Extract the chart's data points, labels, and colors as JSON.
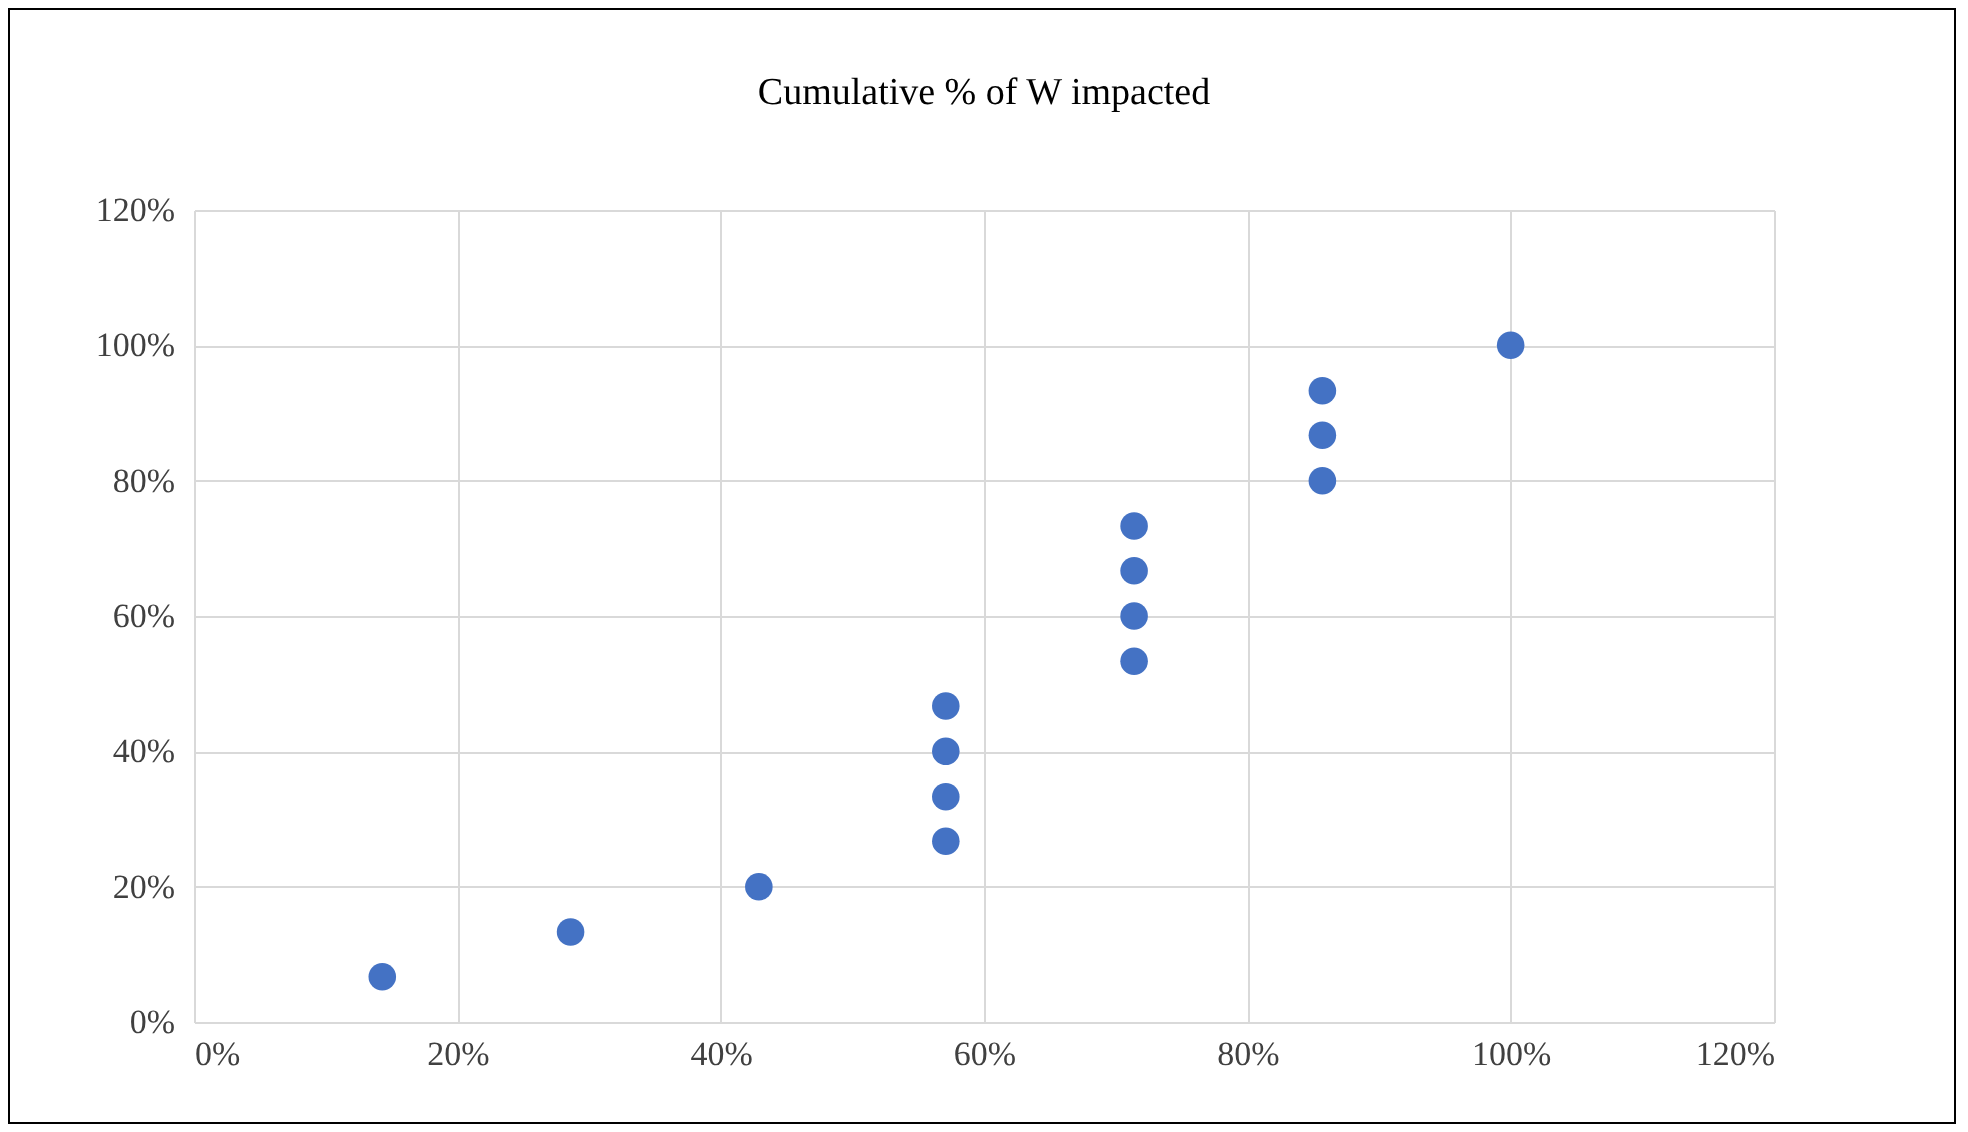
{
  "chart_data": {
    "type": "scatter",
    "title": "Cumulative % of W impacted",
    "x": [
      14.3,
      28.6,
      42.9,
      57.1,
      57.1,
      57.1,
      57.1,
      71.4,
      71.4,
      71.4,
      71.4,
      85.7,
      85.7,
      85.7,
      100
    ],
    "series": [
      {
        "color": "#4472c4",
        "values": [
          6.7,
          13.3,
          20,
          26.7,
          33.3,
          40,
          46.7,
          53.3,
          60,
          66.7,
          73.3,
          80,
          86.7,
          93.3,
          100
        ]
      }
    ],
    "xlim": [
      0,
      120
    ],
    "ylim": [
      0,
      120
    ],
    "xticks": [
      {
        "value": 0,
        "label": "0%"
      },
      {
        "value": 20,
        "label": "20%"
      },
      {
        "value": 40,
        "label": "40%"
      },
      {
        "value": 60,
        "label": "60%"
      },
      {
        "value": 80,
        "label": "80%"
      },
      {
        "value": 100,
        "label": "100%"
      },
      {
        "value": 120,
        "label": "120%"
      }
    ],
    "yticks": [
      {
        "value": 0,
        "label": "0%"
      },
      {
        "value": 20,
        "label": "20%"
      },
      {
        "value": 40,
        "label": "40%"
      },
      {
        "value": 60,
        "label": "60%"
      },
      {
        "value": 80,
        "label": "80%"
      },
      {
        "value": 100,
        "label": "100%"
      },
      {
        "value": 120,
        "label": "120%"
      }
    ],
    "grid": true,
    "marker": "circle"
  }
}
